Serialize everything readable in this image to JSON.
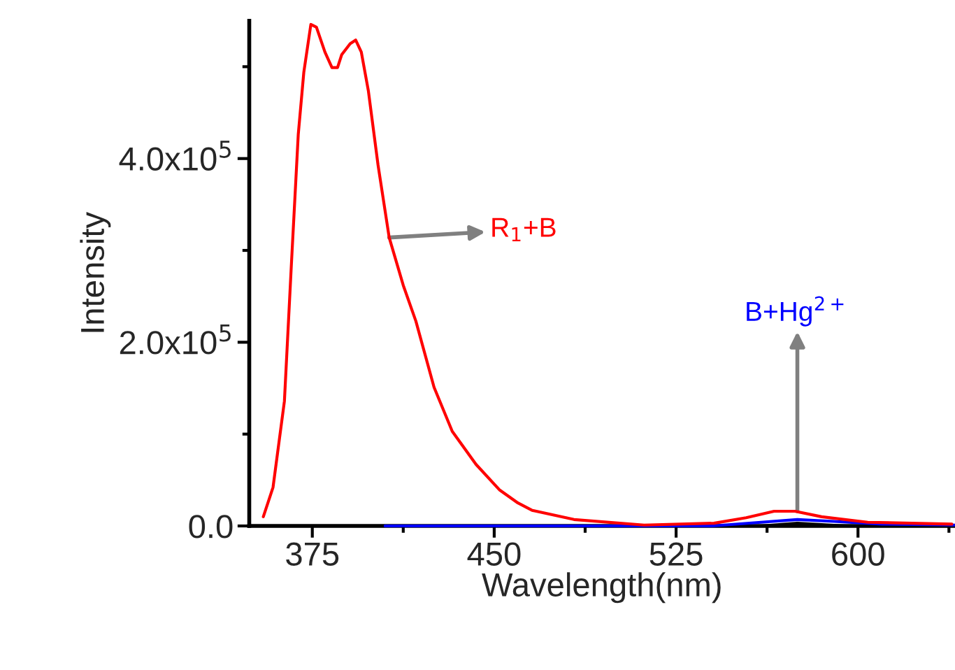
{
  "chart_data": {
    "type": "line",
    "xlabel": "Wavelength(nm)",
    "ylabel": "Intensity",
    "x": [
      354.8,
      358.8,
      363.5,
      366.3,
      369.2,
      371.5,
      374.4,
      376.7,
      380.2,
      383.1,
      385.4,
      387.1,
      390.6,
      392.9,
      395.2,
      398.1,
      402.1,
      406.7,
      412.5,
      417.7,
      425.2,
      432.7,
      442.5,
      452.3,
      459.8,
      465.6,
      482.9,
      511.8,
      540.6,
      553.9,
      565.4,
      574,
      585,
      604,
      638.7
    ],
    "series": [
      {
        "color": "#ff0000",
        "values": [
          10000,
          42000,
          136000,
          281000,
          426000,
          494000,
          546000,
          543000,
          516000,
          499000,
          499000,
          513000,
          525000,
          529000,
          516000,
          474000,
          393000,
          314000,
          262000,
          223000,
          151000,
          103000,
          67000,
          39000,
          25000,
          17000,
          7000,
          1000,
          3000,
          9000,
          16000,
          16000,
          10000,
          4000,
          2000
        ]
      },
      {
        "color": "#0000ff",
        "x": [
          405,
          540,
          560,
          575,
          590,
          610,
          640
        ],
        "values": [
          0,
          0,
          4000,
          7000,
          5000,
          2000,
          1000
        ]
      },
      {
        "color": "#000000",
        "x": [
          560,
          575,
          595
        ],
        "values": [
          0,
          3000,
          0
        ]
      }
    ],
    "annotations": [
      {
        "text": "R$_{1}$+B",
        "x": 406.7,
        "y": 314000
      },
      {
        "text": "B+Hg$^{2+}$",
        "x": 575,
        "y": 16000
      }
    ],
    "xlim": [
      349,
      640
    ],
    "ylim": [
      0,
      550000
    ],
    "xticks": [
      375,
      450,
      525,
      600
    ],
    "yticks": [
      {
        "value": 0,
        "label": "0.0"
      },
      {
        "value": 200000,
        "label": "2.0x10$^{5}$"
      },
      {
        "value": 400000,
        "label": "4.0x10$^{5}$"
      }
    ],
    "grid": false,
    "legend": false,
    "line_style": "solid",
    "marker": "none"
  }
}
